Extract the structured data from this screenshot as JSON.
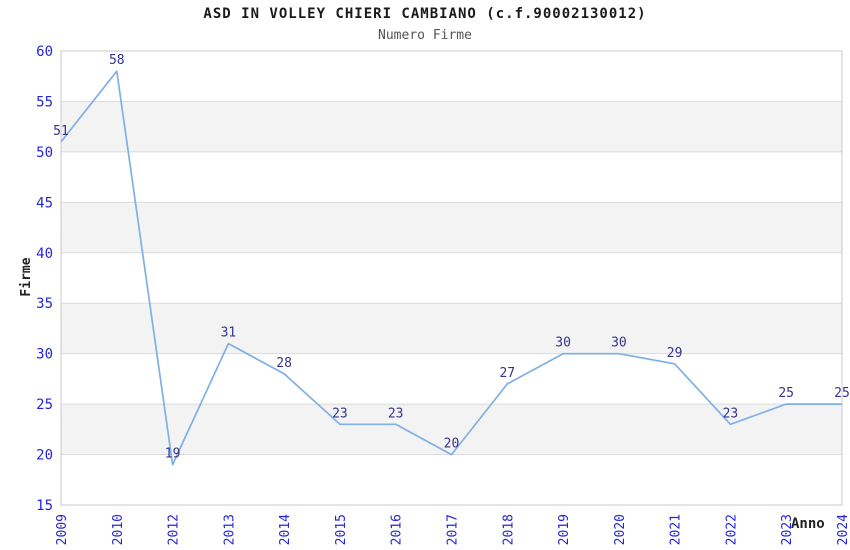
{
  "chart_data": {
    "type": "line",
    "title": "ASD IN VOLLEY CHIERI CAMBIANO (c.f.90002130012)",
    "subtitle": "Numero Firme",
    "xlabel": "Anno",
    "ylabel": "Firme",
    "categories": [
      "2009",
      "2010",
      "2012",
      "2013",
      "2014",
      "2015",
      "2016",
      "2017",
      "2018",
      "2019",
      "2020",
      "2021",
      "2022",
      "2023",
      "2024"
    ],
    "values": [
      51,
      58,
      19,
      31,
      28,
      23,
      23,
      20,
      27,
      30,
      30,
      29,
      23,
      25,
      25
    ],
    "ylim": [
      15,
      60
    ],
    "yticks": [
      15,
      20,
      25,
      30,
      35,
      40,
      45,
      50,
      55,
      60
    ],
    "grid": true,
    "banded_background": true,
    "legend_position": "none",
    "point_labels_visible": true,
    "colors": {
      "line": "#7fb0e5",
      "point_label": "#34348c",
      "tick_label": "#2525dd",
      "title": "#1a1a1a",
      "subtitle": "#555555",
      "axis_title": "#222222",
      "band": "#f3f3f3",
      "gridline": "#dcdcdc",
      "plot_border": "#c8c8c8",
      "background": "#ffffff"
    }
  }
}
